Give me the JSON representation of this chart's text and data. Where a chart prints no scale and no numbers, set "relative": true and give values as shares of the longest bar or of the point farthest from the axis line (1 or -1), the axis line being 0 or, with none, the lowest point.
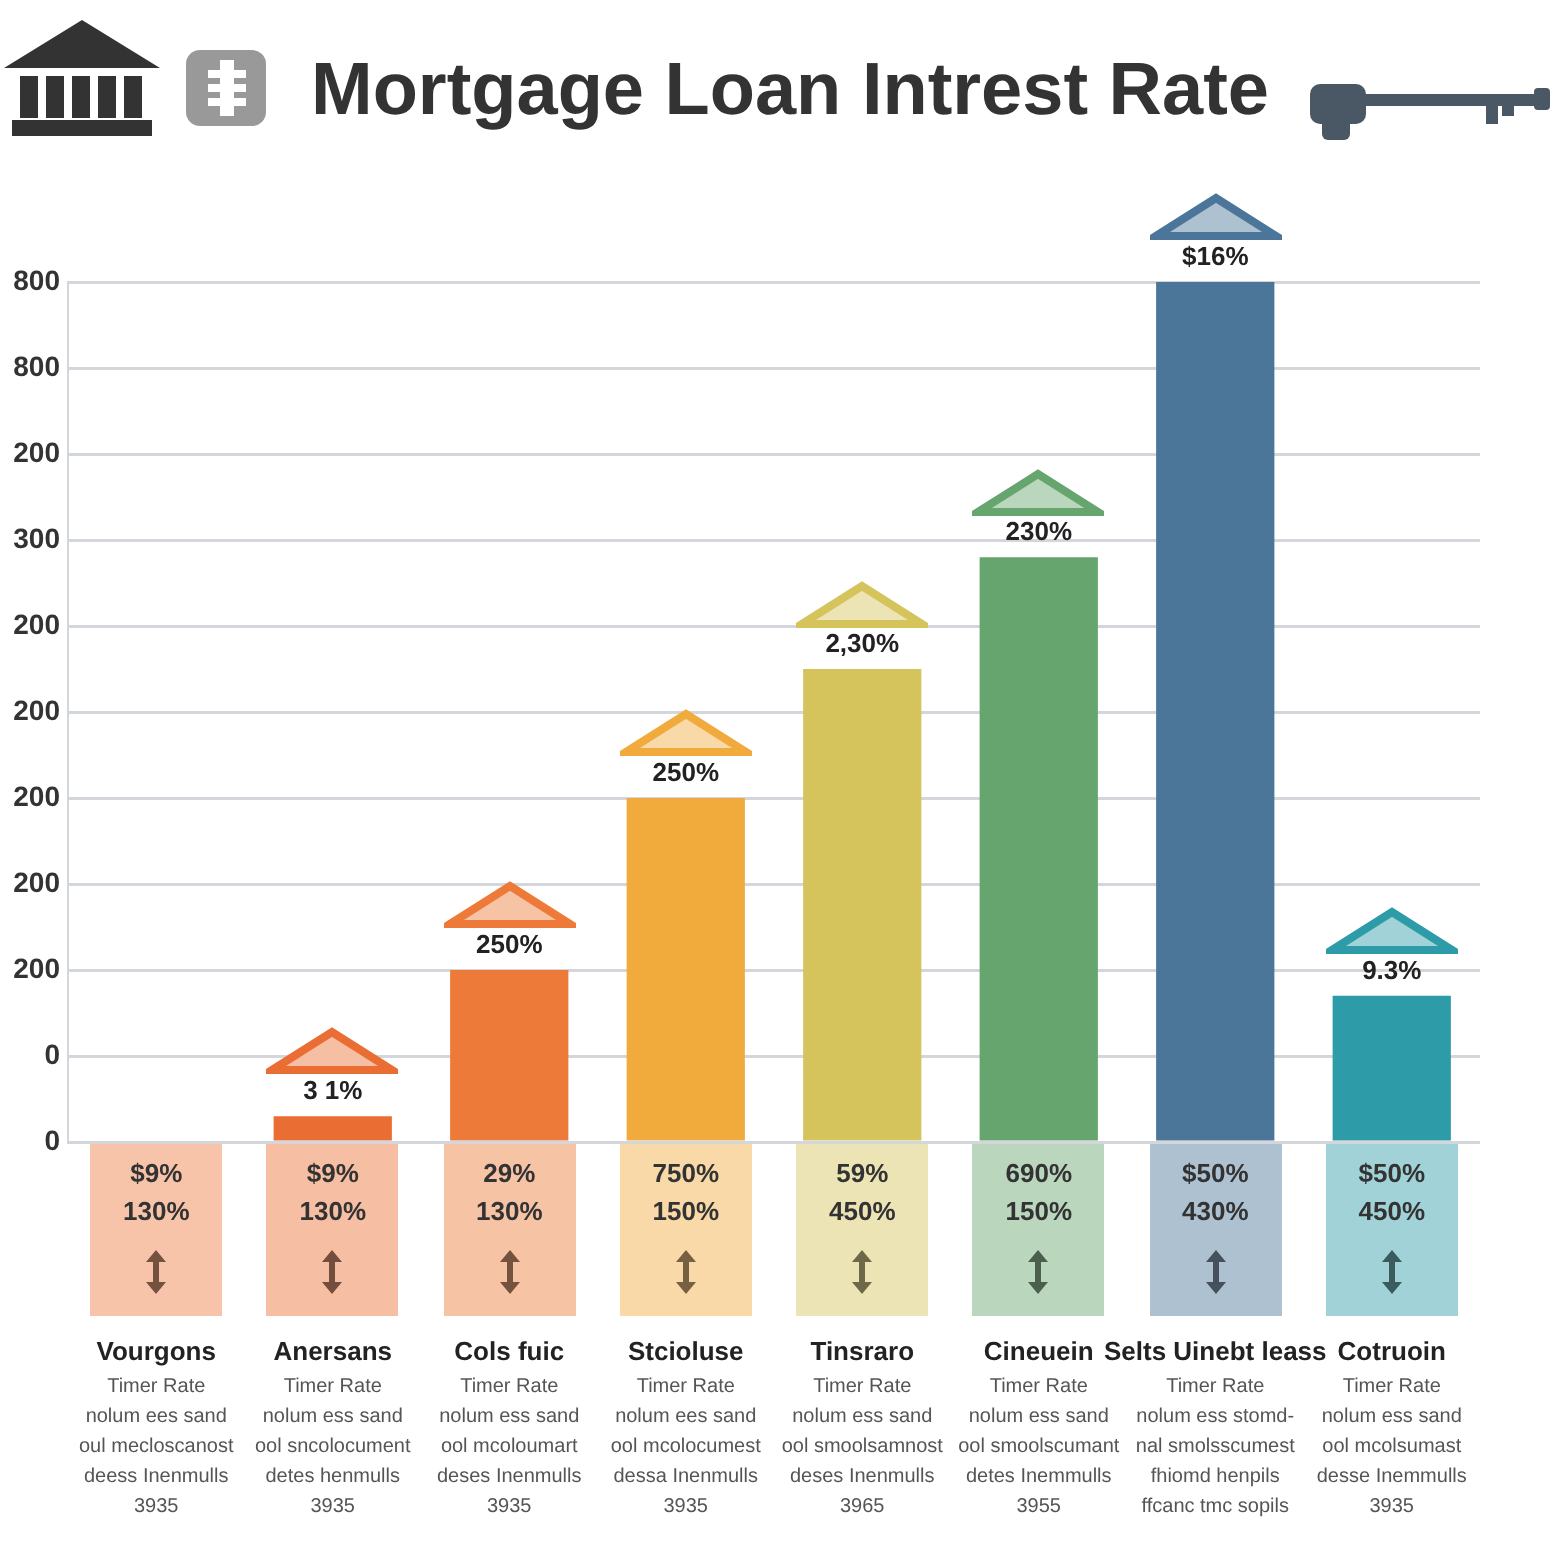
{
  "chart_data": {
    "type": "bar",
    "title": "Mortgage Loan Intrest Rate",
    "relative": true,
    "categories": [
      "Vourgons",
      "Anersans",
      "Cols fuic",
      "Stcioluse",
      "Tinsraro",
      "Cineuein",
      "Selts Uinebt leass",
      "Cotruoin"
    ],
    "values": [
      null,
      0.03,
      0.2,
      0.4,
      0.55,
      0.68,
      1,
      0.17
    ],
    "colors": [
      "#ef7b40",
      "#ea6e33",
      "#ed7a38",
      "#f0ab3c",
      "#d5c35b",
      "#66a56e",
      "#4b7699",
      "#2e9ba8"
    ],
    "grid": "y",
    "annotations": [
      {
        "text": "3 1%",
        "x": "Anersans",
        "y": 0.03
      },
      {
        "text": "250%",
        "x": "Cols fuic",
        "y": 0.2
      },
      {
        "text": "250%",
        "x": "Stcioluse",
        "y": 0.4
      },
      {
        "text": "2,30%",
        "x": "Tinsraro",
        "y": 0.55
      },
      {
        "text": "230%",
        "x": "Cineuein",
        "y": 0.68
      },
      {
        "text": "$16%",
        "x": "Selts Uinebt leass",
        "y": 1
      },
      {
        "text": "9.3%",
        "x": "Cotruoin",
        "y": 0.17
      },
      "800",
      "800",
      "200",
      "300",
      "200",
      "200",
      "200",
      "200",
      "200",
      "0",
      "0",
      "$9%\n130%",
      "Timer Rate\nnolum ees sand\noul mecloscanost\ndeess Inenmulls\n3935",
      "$9%\n130%",
      "Timer Rate\nnolum ess sand\nool sncolocument\ndetes henmulls\n3935",
      "29%\n130%",
      "Timer Rate\nnolum ess sand\nool mcoloumart\ndeses Inenmulls\n3935",
      "750%\n150%",
      "Timer Rate\nnolum ees sand\nool mcolocumest\ndessa Inenmulls\n3935",
      "59%\n450%",
      "Timer Rate\nnolum ess sand\nool smoolsamnost\ndeses Inenmulls\n3965",
      "690%\n150%",
      "Timer Rate\nnolum ess sand\nool smoolscumant\ndetes Inemmulls\n3955",
      "$50%\n430%",
      "Timer Rate\nnolum ess stomd-\nnal smolsscumest\nfhiomd henpils\nffcanc tmc sopils",
      "$50%\n450%",
      "Timer Rate\nnolum ess sand\nool mcolsumast\ndesse Inemmulls\n3935"
    ]
  }
}
